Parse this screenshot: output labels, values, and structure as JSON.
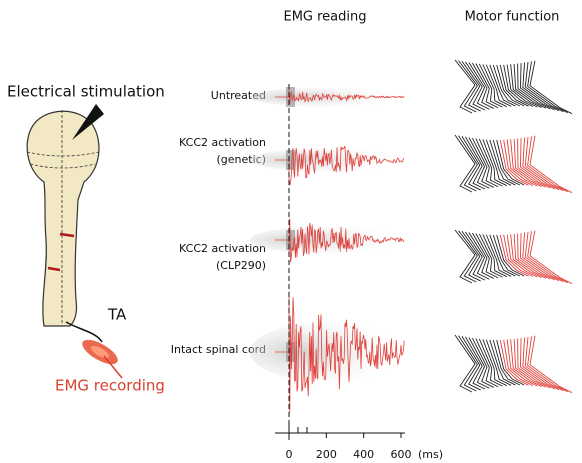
{
  "header": {
    "emg_title": "EMG reading",
    "motor_title": "Motor function"
  },
  "diagram": {
    "stimulation_label": "Electrical stimulation",
    "muscle_label": "TA",
    "recording_label": "EMG recording"
  },
  "rows": [
    {
      "label": [
        "Untreated"
      ]
    },
    {
      "label": [
        "KCC2 activation",
        "(genetic)"
      ]
    },
    {
      "label": [
        "KCC2 activation",
        "(CLP290)"
      ]
    },
    {
      "label": [
        "Intact spinal cord"
      ]
    }
  ],
  "time_axis": {
    "ticks": [
      0,
      200,
      400,
      600
    ],
    "unit": "(ms)"
  }
}
